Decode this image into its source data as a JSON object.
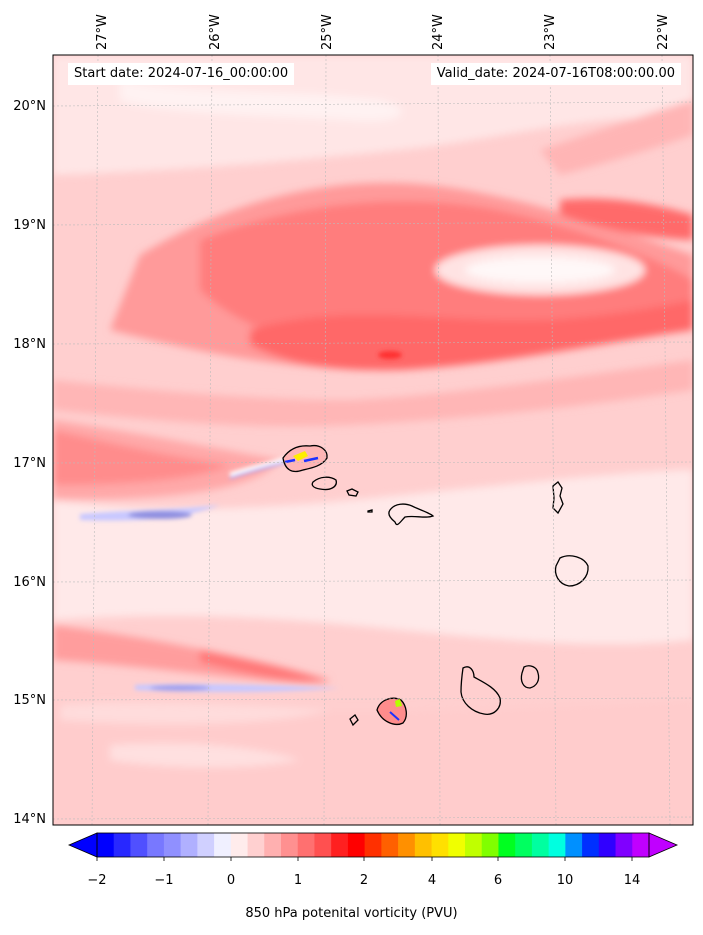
{
  "header": {
    "start_date": "Start date: 2024-07-16_00:00:00",
    "valid_date": "Valid_date: 2024-07-16T08:00:00.00"
  },
  "axes": {
    "lon_labels": [
      "27°W",
      "26°W",
      "25°W",
      "24°W",
      "23°W",
      "22°W"
    ],
    "lat_labels": [
      "20°N",
      "19°N",
      "18°N",
      "17°N",
      "16°N",
      "15°N",
      "14°N"
    ]
  },
  "colorbar": {
    "tick_labels": [
      "−2",
      "−1",
      "0",
      "1",
      "2",
      "4",
      "6",
      "10",
      "14"
    ],
    "title": "850 hPa potenital vorticity (PVU)",
    "colors": [
      "#0000ff",
      "#2828ff",
      "#5050ff",
      "#7878ff",
      "#9090ff",
      "#b0b0ff",
      "#d0d0ff",
      "#f0f0ff",
      "#ffecec",
      "#ffd0d0",
      "#ffb0b0",
      "#ff9090",
      "#ff7070",
      "#ff5050",
      "#ff2020",
      "#ff0000",
      "#ff3000",
      "#ff6000",
      "#ff9000",
      "#ffc000",
      "#ffe000",
      "#f0ff00",
      "#c0ff00",
      "#80ff00",
      "#00ff20",
      "#00ff60",
      "#00ffa0",
      "#00ffe0",
      "#0090ff",
      "#0030ff",
      "#3000ff",
      "#8000ff",
      "#c000ff"
    ]
  },
  "chart_data": {
    "type": "heatmap",
    "variable": "850 hPa potenital vorticity (PVU)",
    "lon_range": [
      "27.3°W",
      "21.7°W"
    ],
    "lat_range": [
      "13.95°N",
      "20.4°N"
    ],
    "grid": true,
    "colorbar_ticks": [
      -2,
      -1,
      0,
      1,
      2,
      4,
      6,
      10,
      14
    ]
  }
}
